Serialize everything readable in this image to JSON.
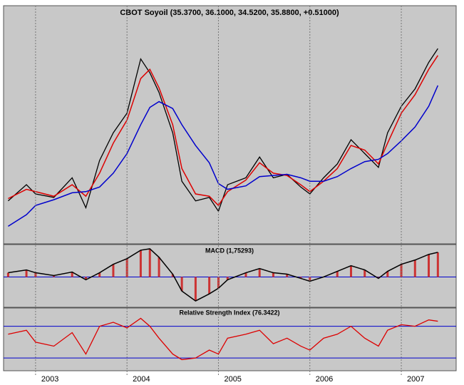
{
  "chart_data": [
    {
      "type": "line",
      "title": "CBOT Soyoil (35.3700, 36.1000, 34.5200, 35.8800, +0.51000)",
      "x": [
        2002.7,
        2002.9,
        2003.0,
        2003.2,
        2003.4,
        2003.55,
        2003.7,
        2003.85,
        2004.0,
        2004.15,
        2004.25,
        2004.35,
        2004.5,
        2004.6,
        2004.75,
        2004.9,
        2005.0,
        2005.1,
        2005.3,
        2005.45,
        2005.6,
        2005.75,
        2005.9,
        2006.0,
        2006.15,
        2006.3,
        2006.45,
        2006.6,
        2006.75,
        2006.85,
        2007.0,
        2007.15,
        2007.3,
        2007.4
      ],
      "series": [
        {
          "color": "#000000",
          "values": [
            22.2,
            23.6,
            22.8,
            22.5,
            24.2,
            21.6,
            25.7,
            28.1,
            29.8,
            34.5,
            33.3,
            31.6,
            28.1,
            23.9,
            22.2,
            22.5,
            21.3,
            23.6,
            24.2,
            26.0,
            24.2,
            24.5,
            23.4,
            22.8,
            24.2,
            25.4,
            27.5,
            26.3,
            25.1,
            28.1,
            30.4,
            31.9,
            34.2,
            35.4
          ]
        },
        {
          "color": "#dd0000",
          "values": [
            22.4,
            23.2,
            23.0,
            22.6,
            23.6,
            22.6,
            24.6,
            27.2,
            29.2,
            32.8,
            33.6,
            32.0,
            28.8,
            25.0,
            22.8,
            22.6,
            21.8,
            23.0,
            24.0,
            25.5,
            24.6,
            24.4,
            23.6,
            23.0,
            23.9,
            25.0,
            27.0,
            26.6,
            25.4,
            27.2,
            29.8,
            31.4,
            33.6,
            34.8
          ]
        },
        {
          "color": "#0000cc",
          "values": [
            20.0,
            21.0,
            21.8,
            22.3,
            22.9,
            23.0,
            23.4,
            24.6,
            26.3,
            28.8,
            30.3,
            30.8,
            30.2,
            28.8,
            27.0,
            25.5,
            23.7,
            23.2,
            23.5,
            24.3,
            24.4,
            24.5,
            24.2,
            23.9,
            23.9,
            24.3,
            25.0,
            25.6,
            25.8,
            26.3,
            27.4,
            28.6,
            30.4,
            32.2
          ]
        }
      ],
      "xlim": [
        2002.65,
        2007.6
      ],
      "ylim": [
        18.6,
        38
      ]
    },
    {
      "type": "bar",
      "title": "MACD (1,75293)",
      "x": [
        2002.7,
        2002.9,
        2003.0,
        2003.2,
        2003.4,
        2003.55,
        2003.7,
        2003.85,
        2004.0,
        2004.15,
        2004.25,
        2004.35,
        2004.5,
        2004.6,
        2004.75,
        2004.9,
        2005.0,
        2005.1,
        2005.3,
        2005.45,
        2005.6,
        2005.75,
        2005.9,
        2006.0,
        2006.15,
        2006.3,
        2006.45,
        2006.6,
        2006.75,
        2006.85,
        2007.0,
        2007.15,
        2007.3,
        2007.4
      ],
      "values": [
        0.3,
        0.5,
        0.3,
        0.1,
        0.35,
        -0.2,
        0.3,
        0.9,
        1.3,
        1.9,
        2.0,
        1.4,
        0.2,
        -1.0,
        -1.7,
        -1.2,
        -0.8,
        -0.2,
        0.3,
        0.6,
        0.3,
        0.2,
        -0.1,
        -0.3,
        0.0,
        0.4,
        0.8,
        0.5,
        -0.1,
        0.4,
        0.9,
        1.2,
        1.6,
        1.75
      ],
      "color": "#cc3333",
      "line_color": "#000000",
      "zero_color": "#0000cc",
      "xlim": [
        2002.65,
        2007.6
      ],
      "ylim": [
        -2,
        2.2
      ]
    },
    {
      "type": "line",
      "title": "Relative Strength Index (76.3422)",
      "x": [
        2002.7,
        2002.9,
        2003.0,
        2003.2,
        2003.4,
        2003.55,
        2003.7,
        2003.85,
        2004.0,
        2004.15,
        2004.25,
        2004.35,
        2004.5,
        2004.6,
        2004.75,
        2004.9,
        2005.0,
        2005.1,
        2005.3,
        2005.45,
        2005.6,
        2005.75,
        2005.9,
        2006.0,
        2006.15,
        2006.3,
        2006.45,
        2006.6,
        2006.75,
        2006.85,
        2007.0,
        2007.15,
        2007.3,
        2007.4
      ],
      "series": [
        {
          "color": "#dd0000",
          "values": [
            60,
            65,
            50,
            45,
            62,
            35,
            70,
            75,
            68,
            80,
            70,
            55,
            35,
            28,
            30,
            40,
            35,
            55,
            60,
            65,
            48,
            55,
            45,
            40,
            55,
            60,
            70,
            55,
            45,
            65,
            72,
            70,
            78,
            76.34
          ]
        }
      ],
      "reference_lines": [
        30,
        70
      ],
      "reference_color": "#0000cc",
      "xlim": [
        2002.65,
        2007.6
      ],
      "ylim": [
        14,
        93
      ],
      "xticks": [
        2003,
        2004,
        2005,
        2006,
        2007
      ]
    }
  ]
}
